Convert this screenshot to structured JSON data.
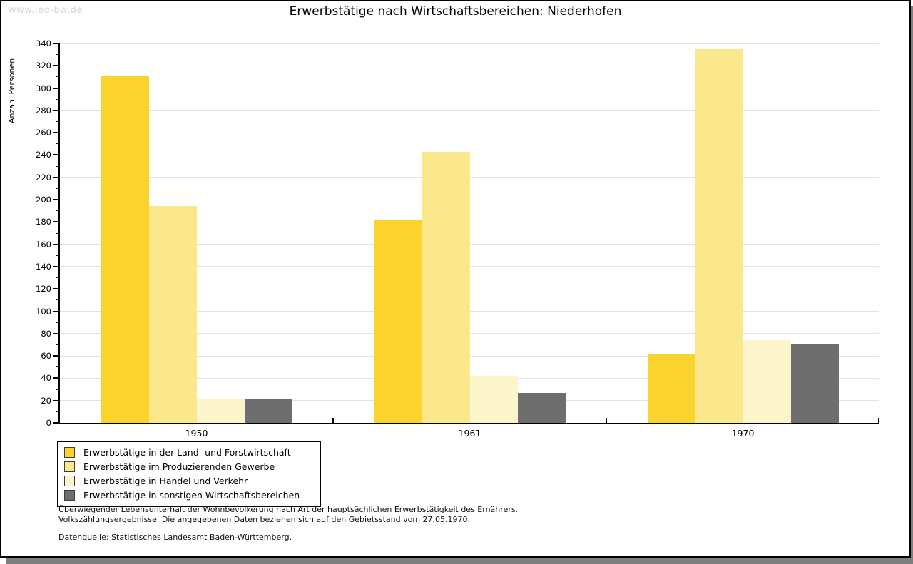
{
  "watermark": "www.leo-bw.de",
  "title": "Erwerbstätige nach Wirtschaftsbereichen: Niederhofen",
  "chart_data": {
    "type": "bar",
    "title": "Erwerbstätige nach Wirtschaftsbereichen: Niederhofen",
    "xlabel": "",
    "ylabel": "Anzahl Personen",
    "categories": [
      "1950",
      "1961",
      "1970"
    ],
    "series": [
      {
        "name": "Erwerbstätige in der Land- und Forstwirtschaft",
        "color": "#FBD32D",
        "values": [
          311,
          182,
          62
        ]
      },
      {
        "name": "Erwerbstätige im Produzierenden Gewerbe",
        "color": "#FCE88C",
        "values": [
          194,
          243,
          335
        ]
      },
      {
        "name": "Erwerbstätige in Handel und Verkehr",
        "color": "#FCF4CA",
        "values": [
          22,
          42,
          74
        ]
      },
      {
        "name": "Erwerbstätige in sonstigen Wirtschaftsbereichen",
        "color": "#6E6E6E",
        "values": [
          22,
          27,
          70
        ]
      }
    ],
    "ylim": [
      0,
      340
    ],
    "ytick_step": 20,
    "minor_tick_step": 10,
    "grid": true,
    "legend_position": "bottom-left"
  },
  "footnotes": {
    "line1": "Überwiegender Lebensunterhalt der Wohnbevölkerung nach Art der hauptsächlichen Erwerbstätigkeit des Ernährers.",
    "line2": "Volkszählungsergebnisse. Die angegebenen Daten beziehen sich auf den Gebietsstand vom 27.05.1970.",
    "source": "Datenquelle: Statistisches Landesamt Baden-Württemberg."
  },
  "colors": {
    "grid": "#e2e2e2",
    "axis": "#000000",
    "frame_shadow": "#7f7f7f",
    "watermark": "#d6d6d6"
  }
}
